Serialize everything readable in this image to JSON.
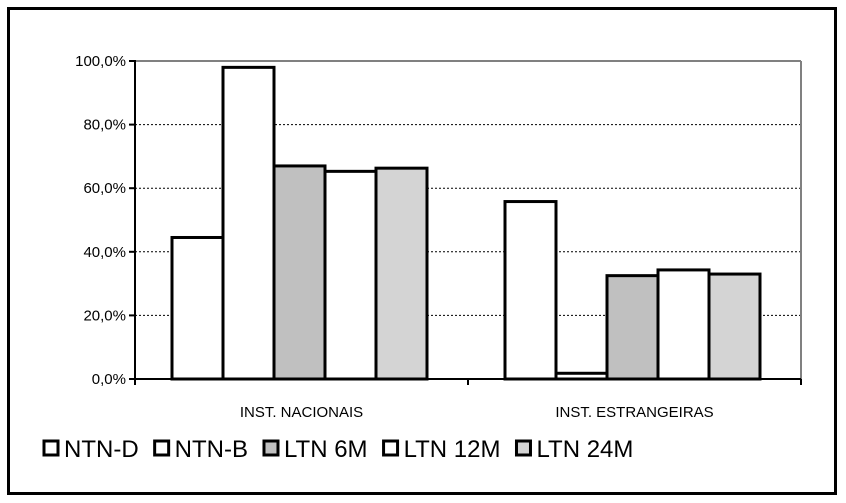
{
  "chart_data": {
    "type": "bar",
    "categories": [
      "INST. NACIONAIS",
      "INST. ESTRANGEIRAS"
    ],
    "series": [
      {
        "name": "NTN-D",
        "values": [
          44.5,
          55.8
        ],
        "color": "#ffffff"
      },
      {
        "name": "NTN-B",
        "values": [
          98.0,
          1.8
        ],
        "color": "#ffffff"
      },
      {
        "name": "LTN 6M",
        "values": [
          67.0,
          32.5
        ],
        "color": "#c0c0c0"
      },
      {
        "name": "LTN 12M",
        "values": [
          65.3,
          34.3
        ],
        "color": "#ffffff"
      },
      {
        "name": "LTN 24M",
        "values": [
          66.3,
          33.0
        ],
        "color": "#d4d4d4"
      }
    ],
    "ylim": [
      0,
      100
    ],
    "yticks": [
      0,
      20,
      40,
      60,
      80,
      100
    ],
    "ytick_labels": [
      "0,0%",
      "20,0%",
      "40,0%",
      "60,0%",
      "80,0%",
      "100,0%"
    ],
    "title": "",
    "xlabel": "",
    "ylabel": "",
    "grid": true,
    "legend_position": "bottom",
    "plot_border_color": "#808080"
  }
}
